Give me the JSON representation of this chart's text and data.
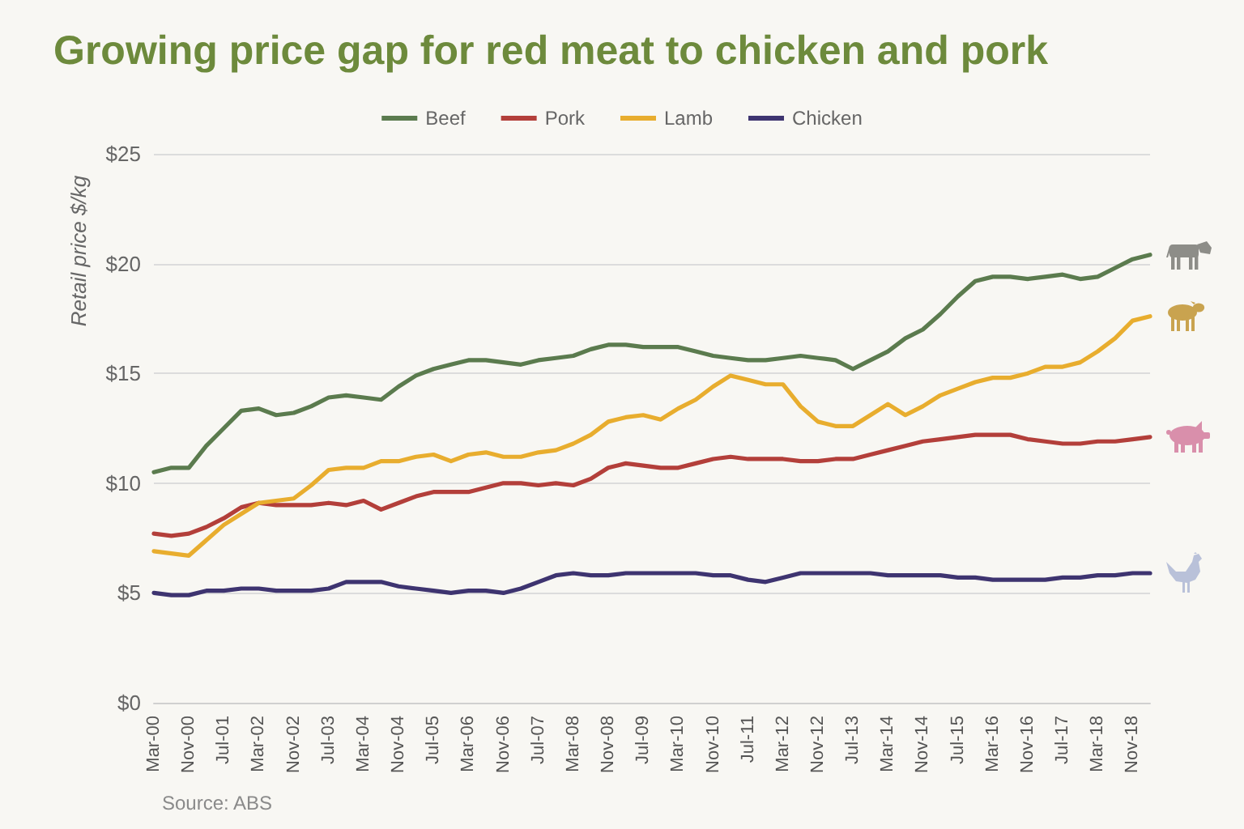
{
  "chart_data": {
    "type": "line",
    "title": "Growing price gap for red meat to chicken and pork",
    "ylabel": "Retail price $/kg",
    "categories": [
      "Mar-00",
      null,
      "Nov-00",
      null,
      "Jul-01",
      null,
      "Mar-02",
      null,
      "Nov-02",
      null,
      "Jul-03",
      null,
      "Mar-04",
      null,
      "Nov-04",
      null,
      "Jul-05",
      null,
      "Mar-06",
      null,
      "Nov-06",
      null,
      "Jul-07",
      null,
      "Mar-08",
      null,
      "Nov-08",
      null,
      "Jul-09",
      null,
      "Mar-10",
      null,
      "Nov-10",
      null,
      "Jul-11",
      null,
      "Mar-12",
      null,
      "Nov-12",
      null,
      "Jul-13",
      null,
      "Mar-14",
      null,
      "Nov-14",
      null,
      "Jul-15",
      null,
      "Mar-16",
      null,
      "Nov-16",
      null,
      "Jul-17",
      null,
      "Mar-18",
      null,
      "Nov-18",
      null
    ],
    "series": [
      {
        "name": "Beef",
        "color": "#5b7b4e",
        "values": [
          10.5,
          10.7,
          10.7,
          11.7,
          12.5,
          13.3,
          13.4,
          13.1,
          13.2,
          13.5,
          13.9,
          14.0,
          13.9,
          13.8,
          14.4,
          14.9,
          15.2,
          15.4,
          15.6,
          15.6,
          15.5,
          15.4,
          15.6,
          15.7,
          15.8,
          16.1,
          16.3,
          16.3,
          16.2,
          16.2,
          16.2,
          16.0,
          15.8,
          15.7,
          15.6,
          15.6,
          15.7,
          15.8,
          15.7,
          15.6,
          15.2,
          15.6,
          16.0,
          16.6,
          17.0,
          17.7,
          18.5,
          19.2,
          19.4,
          19.4,
          19.3,
          19.4,
          19.5,
          19.3,
          19.4,
          19.8,
          20.2,
          20.4
        ]
      },
      {
        "name": "Pork",
        "color": "#b33f3a",
        "values": [
          7.7,
          7.6,
          7.7,
          8.0,
          8.4,
          8.9,
          9.1,
          9.0,
          9.0,
          9.0,
          9.1,
          9.0,
          9.2,
          8.8,
          9.1,
          9.4,
          9.6,
          9.6,
          9.6,
          9.8,
          10.0,
          10.0,
          9.9,
          10.0,
          9.9,
          10.2,
          10.7,
          10.9,
          10.8,
          10.7,
          10.7,
          10.9,
          11.1,
          11.2,
          11.1,
          11.1,
          11.1,
          11.0,
          11.0,
          11.1,
          11.1,
          11.3,
          11.5,
          11.7,
          11.9,
          12.0,
          12.1,
          12.2,
          12.2,
          12.2,
          12.0,
          11.9,
          11.8,
          11.8,
          11.9,
          11.9,
          12.0,
          12.1
        ]
      },
      {
        "name": "Lamb",
        "color": "#e8ad2e",
        "values": [
          6.9,
          6.8,
          6.7,
          7.4,
          8.1,
          8.6,
          9.1,
          9.2,
          9.3,
          9.9,
          10.6,
          10.7,
          10.7,
          11.0,
          11.0,
          11.2,
          11.3,
          11.0,
          11.3,
          11.4,
          11.2,
          11.2,
          11.4,
          11.5,
          11.8,
          12.2,
          12.8,
          13.0,
          13.1,
          12.9,
          13.4,
          13.8,
          14.4,
          14.9,
          14.7,
          14.5,
          14.5,
          13.5,
          12.8,
          12.6,
          12.6,
          13.1,
          13.6,
          13.1,
          13.5,
          14.0,
          14.3,
          14.6,
          14.8,
          14.8,
          15.0,
          15.3,
          15.3,
          15.5,
          16.0,
          16.6,
          17.4,
          17.6
        ]
      },
      {
        "name": "Chicken",
        "color": "#3e3470",
        "values": [
          5.0,
          4.9,
          4.9,
          5.1,
          5.1,
          5.2,
          5.2,
          5.1,
          5.1,
          5.1,
          5.2,
          5.5,
          5.5,
          5.5,
          5.3,
          5.2,
          5.1,
          5.0,
          5.1,
          5.1,
          5.0,
          5.2,
          5.5,
          5.8,
          5.9,
          5.8,
          5.8,
          5.9,
          5.9,
          5.9,
          5.9,
          5.9,
          5.8,
          5.8,
          5.6,
          5.5,
          5.7,
          5.9,
          5.9,
          5.9,
          5.9,
          5.9,
          5.8,
          5.8,
          5.8,
          5.8,
          5.7,
          5.7,
          5.6,
          5.6,
          5.6,
          5.6,
          5.7,
          5.7,
          5.8,
          5.8,
          5.9,
          5.9
        ]
      }
    ],
    "ylim": [
      0,
      25
    ],
    "yticks": [
      {
        "value": 0,
        "label": "$0"
      },
      {
        "value": 5,
        "label": "$5"
      },
      {
        "value": 10,
        "label": "$10"
      },
      {
        "value": 15,
        "label": "$15"
      },
      {
        "value": 20,
        "label": "$20"
      },
      {
        "value": 25,
        "label": "$25"
      }
    ],
    "grid": "y",
    "legend": "top",
    "annotations": [
      "Source: ABS"
    ]
  }
}
